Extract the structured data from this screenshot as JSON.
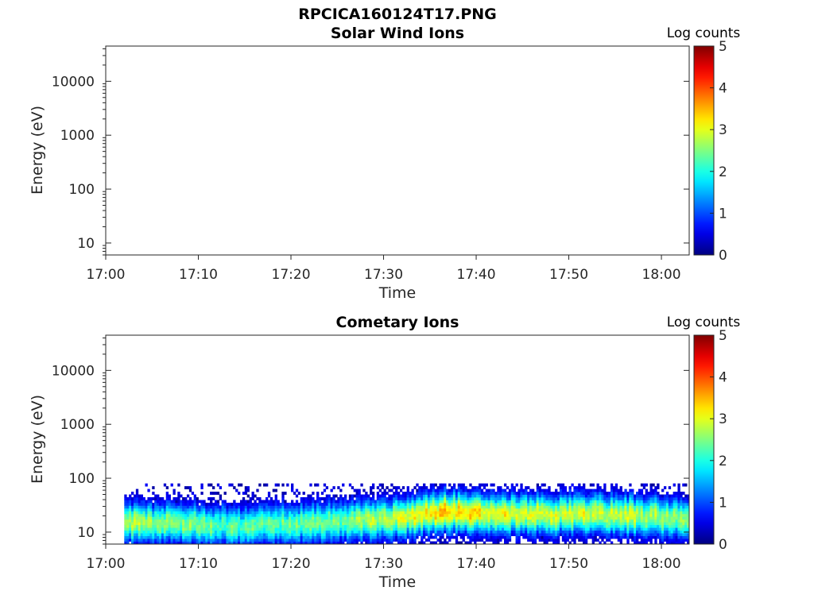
{
  "figure_title": "RPCICA160124T17.PNG",
  "chart_data": [
    {
      "type": "heatmap",
      "title": "Solar Wind Ions",
      "xlabel": "Time",
      "ylabel": "Energy (eV)",
      "x_ticks": [
        "17:00",
        "17:10",
        "17:20",
        "17:30",
        "17:40",
        "17:50",
        "18:00"
      ],
      "xlim": [
        "17:00",
        "18:03"
      ],
      "y_ticks": [
        10,
        100,
        1000,
        10000
      ],
      "y_tick_labels": [
        "10",
        "100",
        "1000",
        "10000"
      ],
      "ylim": [
        6,
        45000
      ],
      "y_scale": "log",
      "colorbar": {
        "label": "Log counts",
        "ticks": [
          "0",
          "1",
          "2",
          "3",
          "4",
          "5"
        ],
        "range": [
          0,
          5
        ],
        "colormap": "jet"
      },
      "data_present": false,
      "description_of_values": "no counts recorded (empty panel)"
    },
    {
      "type": "heatmap",
      "title": "Cometary Ions",
      "xlabel": "Time",
      "ylabel": "Energy (eV)",
      "x_ticks": [
        "17:00",
        "17:10",
        "17:20",
        "17:30",
        "17:40",
        "17:50",
        "18:00"
      ],
      "xlim": [
        "17:00",
        "18:03"
      ],
      "y_ticks": [
        10,
        100,
        1000,
        10000
      ],
      "y_tick_labels": [
        "10",
        "100",
        "1000",
        "10000"
      ],
      "ylim": [
        6,
        45000
      ],
      "y_scale": "log",
      "colorbar": {
        "label": "Log counts",
        "ticks": [
          "0",
          "1",
          "2",
          "3",
          "4",
          "5"
        ],
        "range": [
          0,
          5
        ],
        "colormap": "jet"
      },
      "data_present": true,
      "data_time_range": [
        "17:02",
        "18:03"
      ],
      "energy_range_eV": [
        6,
        80
      ],
      "peak_energy_eV": [
        {
          "t": "17:03",
          "e": 15
        },
        {
          "t": "17:08",
          "e": 15
        },
        {
          "t": "17:14",
          "e": 13
        },
        {
          "t": "17:22",
          "e": 15
        },
        {
          "t": "17:30",
          "e": 17
        },
        {
          "t": "17:36",
          "e": 24
        },
        {
          "t": "17:45",
          "e": 22
        },
        {
          "t": "17:55",
          "e": 21
        },
        {
          "t": "18:02",
          "e": 18
        }
      ],
      "peak_log_counts": [
        {
          "t": "17:03",
          "v": 2.7
        },
        {
          "t": "17:15",
          "v": 2.3
        },
        {
          "t": "17:25",
          "v": 2.4
        },
        {
          "t": "17:37",
          "v": 3.4
        },
        {
          "t": "17:45",
          "v": 3.0
        },
        {
          "t": "17:55",
          "v": 2.9
        },
        {
          "t": "18:02",
          "v": 2.6
        }
      ]
    }
  ]
}
